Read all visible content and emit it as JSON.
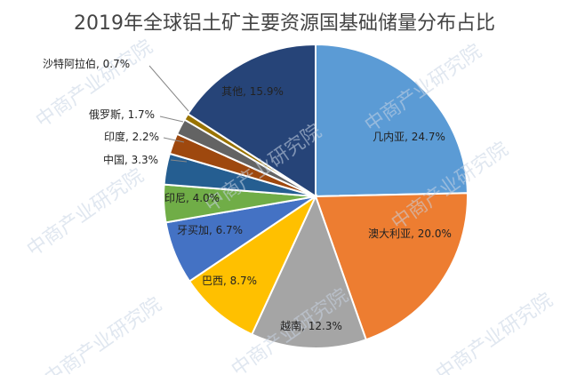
{
  "chart_data": {
    "type": "pie",
    "title": "2019年全球铝土矿主要资源国基础储量分布占比",
    "slices": [
      {
        "name": "几内亚",
        "value": 24.7,
        "label": "几内亚, 24.7%",
        "color": "#5b9bd5"
      },
      {
        "name": "澳大利亚",
        "value": 20.0,
        "label": "澳大利亚, 20.0%",
        "color": "#ed7d31"
      },
      {
        "name": "越南",
        "value": 12.3,
        "label": "越南, 12.3%",
        "color": "#a5a5a5"
      },
      {
        "name": "巴西",
        "value": 8.7,
        "label": "巴西, 8.7%",
        "color": "#ffc000"
      },
      {
        "name": "牙买加",
        "value": 6.7,
        "label": "牙买加, 6.7%",
        "color": "#4472c4"
      },
      {
        "name": "印尼",
        "value": 4.0,
        "label": "印尼, 4.0%",
        "color": "#70ad47"
      },
      {
        "name": "中国",
        "value": 3.3,
        "label": "中国, 3.3%",
        "color": "#255e91"
      },
      {
        "name": "印度",
        "value": 2.2,
        "label": "印度, 2.2%",
        "color": "#9e480e"
      },
      {
        "name": "俄罗斯",
        "value": 1.7,
        "label": "俄罗斯, 1.7%",
        "color": "#636363"
      },
      {
        "name": "沙特阿拉伯",
        "value": 0.7,
        "label": "沙特阿拉伯, 0.7%",
        "color": "#997300"
      },
      {
        "name": "其他",
        "value": 15.9,
        "label": "其他, 15.9%",
        "color": "#264478"
      }
    ],
    "watermark": "中商产业研究院"
  }
}
